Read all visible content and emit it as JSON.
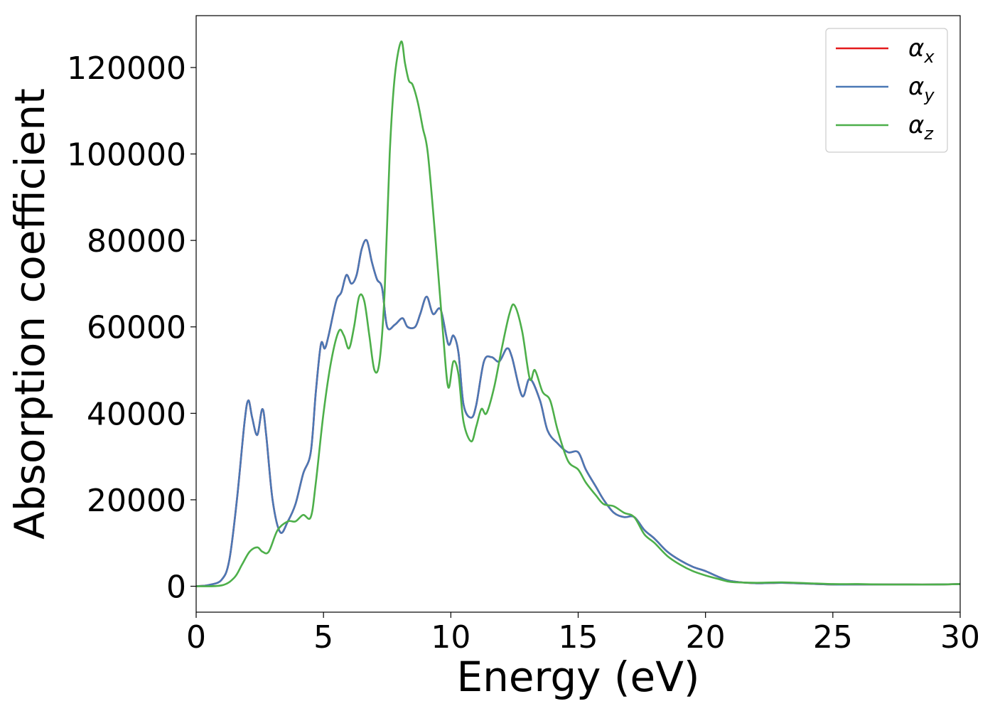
{
  "chart_data": {
    "type": "line",
    "title": "",
    "xlabel": "Energy (eV)",
    "ylabel": "Absorption coefficient",
    "xlim": [
      0,
      30
    ],
    "ylim": [
      -6000,
      132000
    ],
    "xticks": [
      0,
      5,
      10,
      15,
      20,
      25,
      30
    ],
    "xtick_labels": [
      "0",
      "5",
      "10",
      "15",
      "20",
      "25",
      "30"
    ],
    "yticks": [
      0,
      20000,
      40000,
      60000,
      80000,
      100000,
      120000
    ],
    "ytick_labels": [
      "0",
      "20000",
      "40000",
      "60000",
      "80000",
      "100000",
      "120000"
    ],
    "grid": false,
    "legend_position": "top-right",
    "series": [
      {
        "name": "α",
        "subscript": "x",
        "color": "#e41a1c",
        "x": [
          0,
          0.5,
          1.0,
          1.3,
          1.6,
          1.9,
          2.05,
          2.2,
          2.4,
          2.6,
          2.75,
          3.0,
          3.3,
          3.6,
          3.9,
          4.2,
          4.5,
          4.7,
          4.9,
          5.05,
          5.2,
          5.5,
          5.7,
          5.9,
          6.1,
          6.3,
          6.5,
          6.7,
          6.9,
          7.1,
          7.3,
          7.5,
          7.8,
          8.1,
          8.3,
          8.6,
          8.8,
          9.05,
          9.3,
          9.6,
          9.9,
          10.1,
          10.3,
          10.5,
          10.8,
          11.0,
          11.3,
          11.6,
          11.9,
          12.2,
          12.4,
          12.8,
          13.1,
          13.5,
          13.8,
          14.2,
          14.6,
          15.0,
          15.3,
          15.7,
          16.0,
          16.4,
          16.8,
          17.2,
          17.6,
          18.0,
          18.5,
          19.0,
          19.5,
          20.0,
          20.5,
          21.0,
          22.0,
          23.0,
          24.0,
          25.0,
          26.0,
          27.0,
          28.0,
          29.0,
          30.0
        ],
        "y": [
          0,
          300,
          1500,
          6000,
          20000,
          38000,
          43000,
          39000,
          35000,
          41000,
          35000,
          20000,
          12500,
          15000,
          19000,
          26000,
          31000,
          45000,
          56000,
          55000,
          58000,
          66000,
          68000,
          72000,
          70000,
          72000,
          78000,
          80000,
          75000,
          71000,
          69000,
          60000,
          60500,
          62000,
          60000,
          60000,
          63000,
          67000,
          63000,
          64000,
          56000,
          58000,
          54000,
          42000,
          39000,
          42000,
          52000,
          53000,
          52000,
          55000,
          53000,
          44000,
          48000,
          43000,
          36000,
          33000,
          31000,
          31000,
          27000,
          23000,
          20000,
          17000,
          16000,
          16000,
          13000,
          11000,
          8000,
          6000,
          4500,
          3500,
          2200,
          1200,
          700,
          800,
          600,
          400,
          400,
          400,
          400,
          400,
          500
        ]
      },
      {
        "name": "α",
        "subscript": "y",
        "color": "#4a78b5",
        "x": [
          0,
          0.5,
          1.0,
          1.3,
          1.6,
          1.9,
          2.05,
          2.2,
          2.4,
          2.6,
          2.75,
          3.0,
          3.3,
          3.6,
          3.9,
          4.2,
          4.5,
          4.7,
          4.9,
          5.05,
          5.2,
          5.5,
          5.7,
          5.9,
          6.1,
          6.3,
          6.5,
          6.7,
          6.9,
          7.1,
          7.3,
          7.5,
          7.8,
          8.1,
          8.3,
          8.6,
          8.8,
          9.05,
          9.3,
          9.6,
          9.9,
          10.1,
          10.3,
          10.5,
          10.8,
          11.0,
          11.3,
          11.6,
          11.9,
          12.2,
          12.4,
          12.8,
          13.1,
          13.5,
          13.8,
          14.2,
          14.6,
          15.0,
          15.3,
          15.7,
          16.0,
          16.4,
          16.8,
          17.2,
          17.6,
          18.0,
          18.5,
          19.0,
          19.5,
          20.0,
          20.5,
          21.0,
          22.0,
          23.0,
          24.0,
          25.0,
          26.0,
          27.0,
          28.0,
          29.0,
          30.0
        ],
        "y": [
          0,
          300,
          1500,
          6000,
          20000,
          38000,
          43000,
          39000,
          35000,
          41000,
          35000,
          20000,
          12500,
          15000,
          19000,
          26000,
          31000,
          45000,
          56000,
          55000,
          58000,
          66000,
          68000,
          72000,
          70000,
          72000,
          78000,
          80000,
          75000,
          71000,
          69000,
          60000,
          60500,
          62000,
          60000,
          60000,
          63000,
          67000,
          63000,
          64000,
          56000,
          58000,
          54000,
          42000,
          39000,
          42000,
          52000,
          53000,
          52000,
          55000,
          53000,
          44000,
          48000,
          43000,
          36000,
          33000,
          31000,
          31000,
          27000,
          23000,
          20000,
          17000,
          16000,
          16000,
          13000,
          11000,
          8000,
          6000,
          4500,
          3500,
          2200,
          1200,
          700,
          800,
          600,
          400,
          400,
          400,
          400,
          400,
          500
        ]
      },
      {
        "name": "α",
        "subscript": "z",
        "color": "#4daf4a",
        "x": [
          0,
          1.0,
          1.5,
          1.8,
          2.1,
          2.4,
          2.6,
          2.85,
          3.2,
          3.6,
          3.9,
          4.2,
          4.5,
          4.7,
          5.0,
          5.3,
          5.6,
          5.8,
          6.0,
          6.2,
          6.4,
          6.6,
          6.8,
          7.0,
          7.2,
          7.4,
          7.6,
          7.8,
          8.05,
          8.2,
          8.35,
          8.5,
          8.7,
          8.9,
          9.1,
          9.4,
          9.7,
          9.9,
          10.1,
          10.3,
          10.5,
          10.8,
          11.0,
          11.2,
          11.4,
          11.7,
          12.0,
          12.3,
          12.5,
          12.8,
          13.1,
          13.3,
          13.6,
          13.9,
          14.2,
          14.6,
          15.0,
          15.3,
          15.7,
          16.0,
          16.4,
          16.8,
          17.2,
          17.6,
          18.0,
          18.5,
          19.0,
          19.5,
          20.0,
          20.5,
          21.0,
          22.0,
          23.0,
          24.0,
          25.0,
          26.0,
          27.0,
          28.0,
          29.0,
          30.0
        ],
        "y": [
          0,
          200,
          2000,
          5000,
          8000,
          9000,
          8000,
          8000,
          13000,
          15000,
          15000,
          16500,
          16000,
          24000,
          40000,
          52000,
          59000,
          58000,
          55000,
          60000,
          67000,
          66000,
          58000,
          50000,
          52000,
          68000,
          100000,
          118000,
          126000,
          121000,
          117000,
          116000,
          112000,
          106000,
          100000,
          80000,
          58000,
          46000,
          52000,
          49000,
          38000,
          33500,
          37000,
          41000,
          40000,
          46000,
          55000,
          63000,
          65000,
          59000,
          48000,
          50000,
          45000,
          43000,
          36000,
          29000,
          27000,
          24000,
          21000,
          19000,
          18500,
          17000,
          16000,
          12000,
          10000,
          7000,
          5000,
          3500,
          2500,
          1700,
          1000,
          800,
          900,
          700,
          500,
          500,
          400,
          400,
          400,
          500
        ]
      }
    ]
  }
}
